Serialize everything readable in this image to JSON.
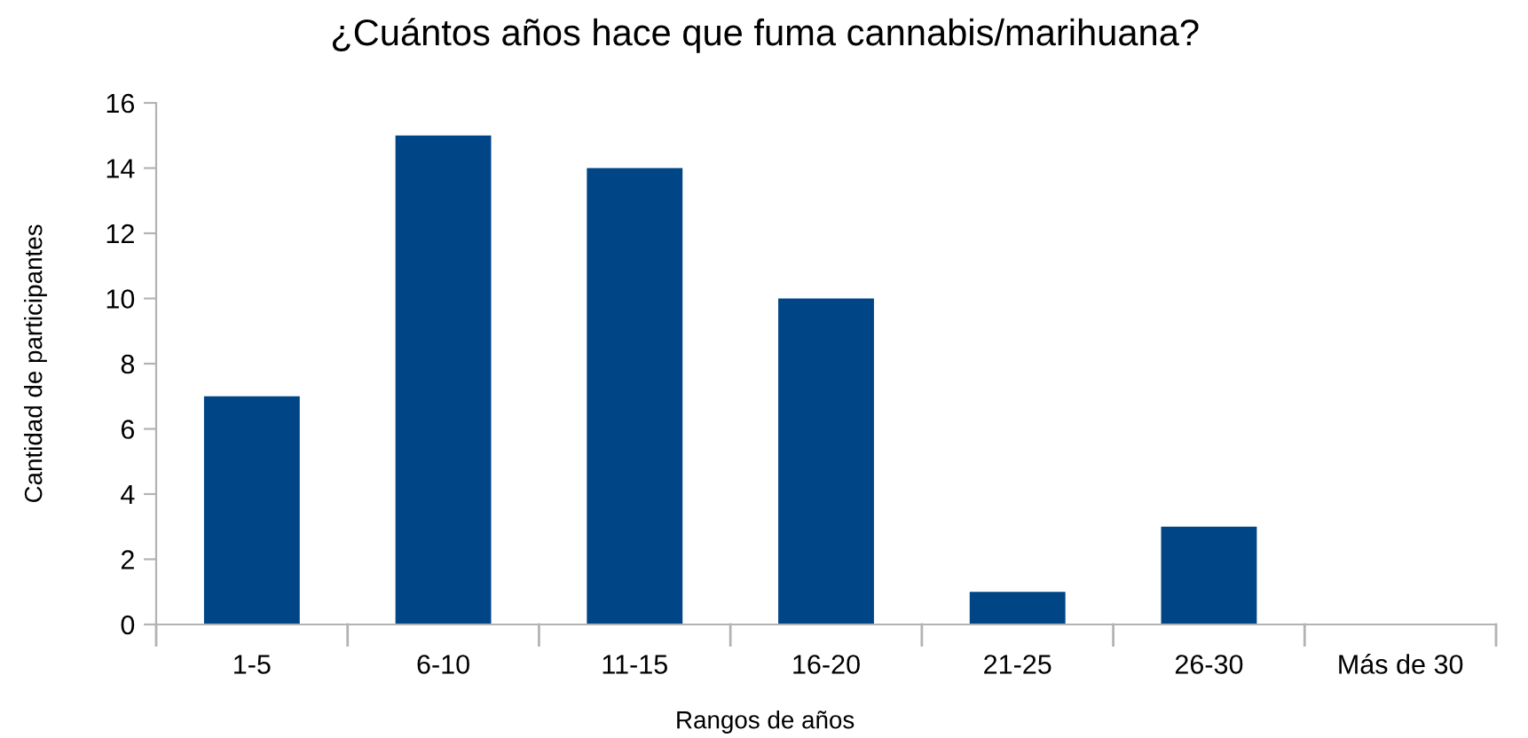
{
  "chart_data": {
    "type": "bar",
    "title": "¿Cuántos años hace que fuma cannabis/marihuana?",
    "xlabel": "Rangos de años",
    "ylabel": "Cantidad de participantes",
    "categories": [
      "1-5",
      "6-10",
      "11-15",
      "16-20",
      "21-25",
      "26-30",
      "Más de 30"
    ],
    "values": [
      7,
      15,
      14,
      10,
      1,
      3,
      0
    ],
    "color": "#004586",
    "ylim": [
      0,
      16
    ],
    "yticks": [
      0,
      2,
      4,
      6,
      8,
      10,
      12,
      14,
      16
    ],
    "grid": false,
    "legend": false
  }
}
